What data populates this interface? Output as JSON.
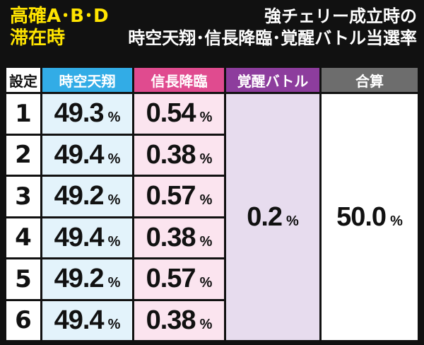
{
  "header": {
    "left_line1": "高確A･B･D",
    "left_line2": "滞在時",
    "right_line1": "強チェリー成立時の",
    "right_line2": "時空天翔･信長降臨･覚醒バトル当選率"
  },
  "table": {
    "columns": {
      "setting": "設定",
      "jikuu": "時空天翔",
      "shinchou": "信長降臨",
      "kakusei": "覚醒バトル",
      "gassan": "合算"
    },
    "unit": "%",
    "rows": [
      {
        "setting": "1",
        "jikuu": "49.3",
        "shinchou": "0.54"
      },
      {
        "setting": "2",
        "jikuu": "49.4",
        "shinchou": "0.38"
      },
      {
        "setting": "3",
        "jikuu": "49.2",
        "shinchou": "0.57"
      },
      {
        "setting": "4",
        "jikuu": "49.4",
        "shinchou": "0.38"
      },
      {
        "setting": "5",
        "jikuu": "49.2",
        "shinchou": "0.57"
      },
      {
        "setting": "6",
        "jikuu": "49.4",
        "shinchou": "0.38"
      }
    ],
    "kakusei_all": "0.2",
    "gassan_all": "50.0"
  },
  "colors": {
    "title_yellow": "#ffe400",
    "jikuu_header": "#32ace6",
    "shinchou_header": "#e04b8f",
    "kakusei_header": "#8d3d9d",
    "gassan_header": "#6d6d6d"
  }
}
